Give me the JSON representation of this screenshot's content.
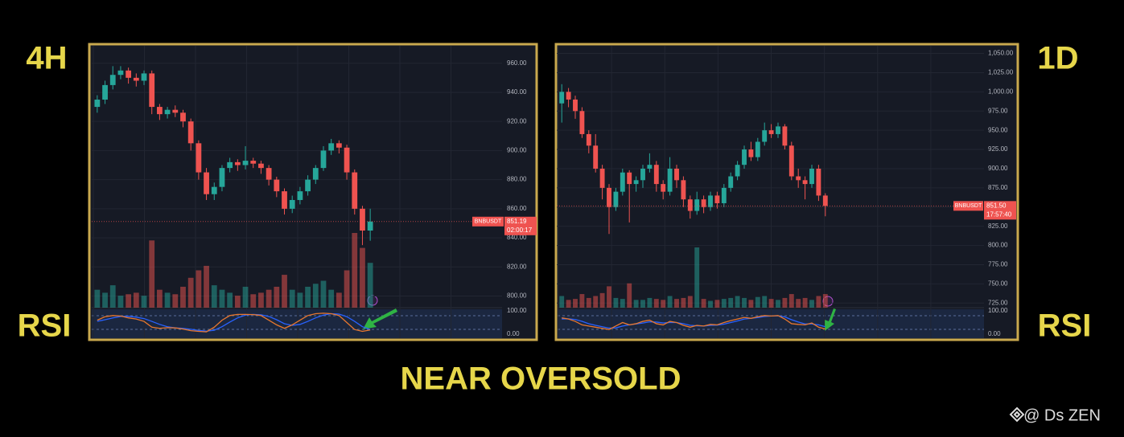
{
  "chart_data": [
    {
      "type": "candlestick",
      "title": "4H",
      "indicator_label": "RSI",
      "symbol": "BNBUSDT",
      "last_price": 851.19,
      "countdown": "02:00:17",
      "up_color": "#26a69a",
      "down_color": "#ef5350",
      "open": [
        930,
        935,
        945,
        952,
        955,
        950,
        948,
        953,
        930,
        925,
        928,
        926,
        920,
        905,
        885,
        870,
        875,
        888,
        892,
        890,
        893,
        891,
        888,
        880,
        872,
        860,
        866,
        872,
        880,
        888,
        900,
        905,
        902,
        885,
        860,
        845
      ],
      "high": [
        938,
        948,
        958,
        958,
        957,
        953,
        955,
        955,
        932,
        930,
        931,
        928,
        922,
        907,
        888,
        878,
        890,
        895,
        894,
        903,
        895,
        893,
        890,
        882,
        874,
        869,
        875,
        883,
        890,
        903,
        908,
        907,
        904,
        887,
        862,
        860
      ],
      "low": [
        926,
        932,
        942,
        949,
        946,
        944,
        945,
        925,
        921,
        922,
        923,
        916,
        900,
        880,
        866,
        866,
        872,
        885,
        886,
        887,
        888,
        884,
        876,
        868,
        856,
        857,
        863,
        869,
        877,
        886,
        897,
        898,
        880,
        856,
        835,
        838
      ],
      "close": [
        935,
        945,
        952,
        955,
        950,
        948,
        953,
        930,
        925,
        928,
        926,
        920,
        905,
        885,
        870,
        875,
        888,
        892,
        890,
        893,
        891,
        888,
        880,
        872,
        860,
        866,
        872,
        880,
        888,
        900,
        905,
        902,
        885,
        860,
        845,
        851.19
      ],
      "volume": [
        12,
        10,
        15,
        8,
        9,
        10,
        8,
        45,
        12,
        10,
        9,
        14,
        20,
        25,
        28,
        15,
        12,
        10,
        8,
        14,
        9,
        10,
        12,
        14,
        22,
        12,
        10,
        14,
        16,
        18,
        12,
        10,
        25,
        50,
        40,
        30
      ],
      "rsi": {
        "color": "#e8772e",
        "values": [
          60,
          75,
          80,
          78,
          70,
          65,
          55,
          30,
          25,
          28,
          27,
          22,
          15,
          12,
          10,
          30,
          60,
          80,
          85,
          85,
          84,
          80,
          60,
          40,
          25,
          40,
          60,
          80,
          88,
          90,
          88,
          80,
          50,
          20,
          12,
          18
        ]
      },
      "rsi_ma": {
        "color": "#2962ff",
        "values": [
          55,
          62,
          70,
          76,
          77,
          73,
          67,
          55,
          42,
          32,
          27,
          25,
          21,
          16,
          13,
          17,
          32,
          52,
          70,
          82,
          85,
          83,
          76,
          62,
          45,
          38,
          42,
          55,
          70,
          82,
          88,
          86,
          75,
          55,
          32,
          20
        ]
      },
      "ylim": [
        792,
        972
      ],
      "yticks": [
        {
          "value": 800,
          "label": "800.00"
        },
        {
          "value": 820,
          "label": "820.00"
        },
        {
          "value": 840,
          "label": "840.00"
        },
        {
          "value": 860,
          "label": "860.00"
        },
        {
          "value": 880,
          "label": "880.00"
        },
        {
          "value": 900,
          "label": "900.00"
        },
        {
          "value": 920,
          "label": "920.00"
        },
        {
          "value": 940,
          "label": "940.00"
        },
        {
          "value": 960,
          "label": "960.00"
        }
      ],
      "rsi_ylim": [
        0,
        100
      ],
      "rsi_yticks": [
        {
          "value": 0,
          "label": "0.00"
        },
        {
          "value": 100,
          "label": "100.00"
        }
      ]
    },
    {
      "type": "candlestick",
      "title": "1D",
      "indicator_label": "RSI",
      "symbol": "BNBUSDT",
      "last_price": {
        "value": 851.5,
        "label": "851.50"
      },
      "countdown": "17:57:40",
      "up_color": "#26a69a",
      "down_color": "#ef5350",
      "open": [
        985,
        1000,
        990,
        975,
        945,
        930,
        900,
        875,
        850,
        870,
        895,
        880,
        885,
        900,
        905,
        880,
        870,
        900,
        885,
        860,
        845,
        860,
        850,
        865,
        855,
        875,
        890,
        905,
        925,
        915,
        935,
        950,
        945,
        955,
        930,
        890,
        885,
        880,
        900,
        865
      ],
      "high": [
        1010,
        1005,
        995,
        980,
        950,
        945,
        905,
        880,
        875,
        900,
        898,
        890,
        905,
        920,
        910,
        885,
        915,
        905,
        890,
        865,
        870,
        865,
        870,
        870,
        880,
        895,
        910,
        930,
        935,
        940,
        960,
        958,
        960,
        958,
        935,
        900,
        890,
        905,
        905,
        868
      ],
      "low": [
        960,
        980,
        965,
        940,
        920,
        895,
        860,
        815,
        845,
        865,
        830,
        870,
        875,
        895,
        870,
        860,
        865,
        875,
        850,
        835,
        840,
        842,
        845,
        848,
        850,
        870,
        885,
        900,
        910,
        910,
        930,
        940,
        940,
        925,
        885,
        875,
        860,
        875,
        858,
        838
      ],
      "close": [
        1000,
        990,
        975,
        945,
        930,
        900,
        875,
        850,
        870,
        895,
        880,
        885,
        900,
        905,
        880,
        870,
        900,
        885,
        860,
        845,
        860,
        850,
        865,
        855,
        875,
        890,
        905,
        925,
        915,
        935,
        950,
        945,
        955,
        930,
        890,
        885,
        880,
        900,
        865,
        851.5
      ],
      "volume": [
        12,
        8,
        9,
        14,
        10,
        12,
        15,
        22,
        10,
        9,
        25,
        8,
        8,
        10,
        9,
        8,
        12,
        9,
        10,
        12,
        62,
        9,
        7,
        8,
        9,
        10,
        12,
        10,
        8,
        11,
        12,
        9,
        8,
        10,
        14,
        9,
        10,
        8,
        12,
        14
      ],
      "rsi": {
        "color": "#e8772e",
        "values": [
          70,
          65,
          55,
          40,
          35,
          30,
          25,
          20,
          35,
          50,
          40,
          45,
          55,
          60,
          45,
          40,
          55,
          50,
          38,
          30,
          38,
          35,
          42,
          40,
          50,
          58,
          65,
          72,
          68,
          75,
          80,
          78,
          80,
          65,
          45,
          42,
          40,
          48,
          30,
          22
        ]
      },
      "rsi_ma": {
        "color": "#2962ff",
        "values": [
          65,
          66,
          63,
          55,
          45,
          38,
          32,
          26,
          27,
          35,
          40,
          44,
          48,
          53,
          52,
          48,
          50,
          50,
          45,
          38,
          36,
          35,
          38,
          39,
          43,
          50,
          57,
          65,
          68,
          71,
          76,
          78,
          79,
          74,
          62,
          52,
          44,
          44,
          40,
          32
        ]
      },
      "ylim": [
        719,
        1060
      ],
      "yticks": [
        {
          "value": 725,
          "label": "725.00"
        },
        {
          "value": 750,
          "label": "750.00"
        },
        {
          "value": 775,
          "label": "775.00"
        },
        {
          "value": 800,
          "label": "800.00"
        },
        {
          "value": 825,
          "label": "825.00"
        },
        {
          "value": 850,
          "label": "850.00"
        },
        {
          "value": 875,
          "label": "875.00"
        },
        {
          "value": 900,
          "label": "900.00"
        },
        {
          "value": 925,
          "label": "925.00"
        },
        {
          "value": 950,
          "label": "950.00"
        },
        {
          "value": 975,
          "label": "975.00"
        },
        {
          "value": 1000,
          "label": "1,000.00"
        },
        {
          "value": 1025,
          "label": "1,025.00"
        },
        {
          "value": 1050,
          "label": "1,050.00"
        }
      ],
      "rsi_ylim": [
        0,
        100
      ],
      "rsi_yticks": [
        {
          "value": 0,
          "label": "0.00"
        },
        {
          "value": 100,
          "label": "100.00"
        }
      ]
    }
  ],
  "annotation": "NEAR OVERSOLD",
  "watermark": "@ Ds ZEN"
}
